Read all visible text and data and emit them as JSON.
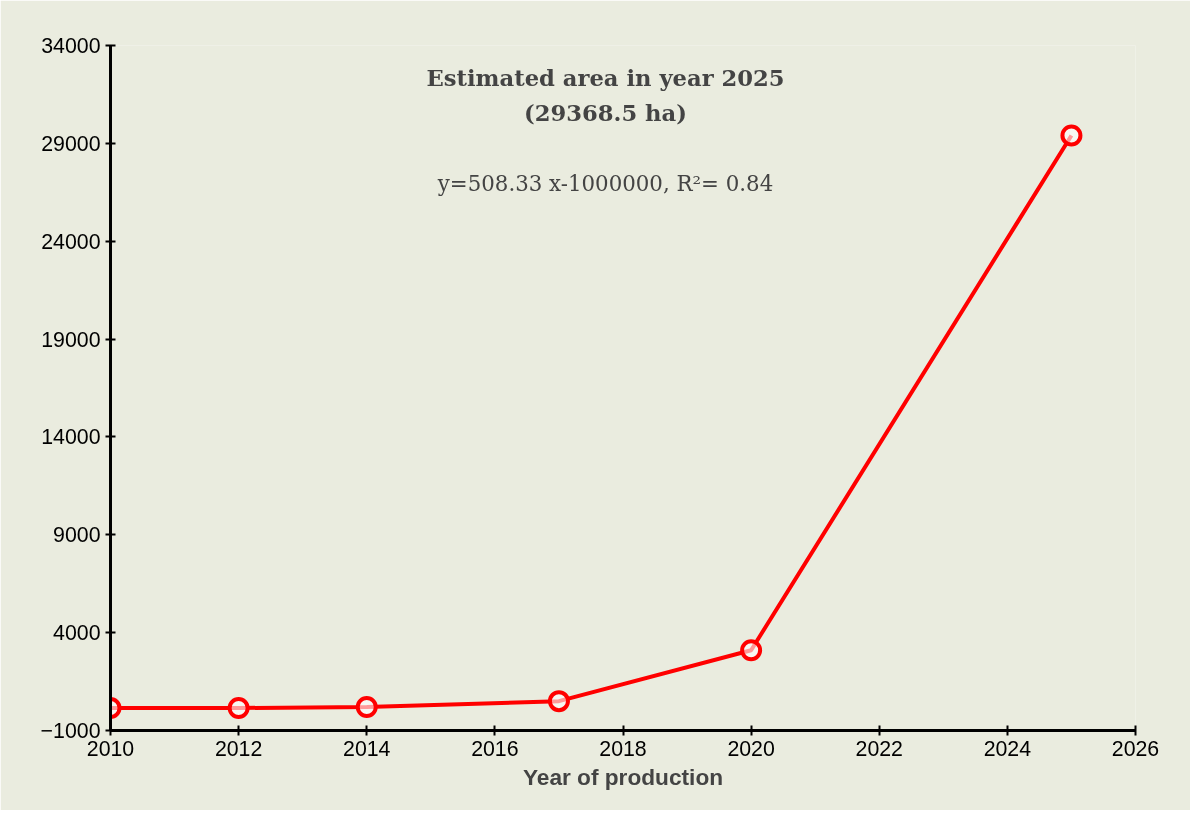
{
  "chart_data": {
    "type": "line",
    "xlabel": "Year of production",
    "annotations": [
      "Estimated area in year 2025",
      "(29368.5 ha)",
      "y=508.33 x-1000000, R²= 0.84"
    ],
    "x": [
      2010,
      2012,
      2014,
      2017,
      2020,
      2025
    ],
    "series": [
      {
        "color": "#ff0000",
        "values": [
          150,
          150,
          200,
          500,
          3100,
          29400
        ]
      }
    ],
    "xlim": [
      2010,
      2026
    ],
    "xticks": [
      2010,
      2012,
      2014,
      2016,
      2018,
      2020,
      2022,
      2024,
      2026
    ],
    "ylim": [
      -1000,
      34000
    ],
    "yticks": [
      -1000,
      4000,
      9000,
      14000,
      19000,
      24000,
      29000,
      34000
    ],
    "marker": "circle",
    "line_style": "solid",
    "grid": false
  }
}
